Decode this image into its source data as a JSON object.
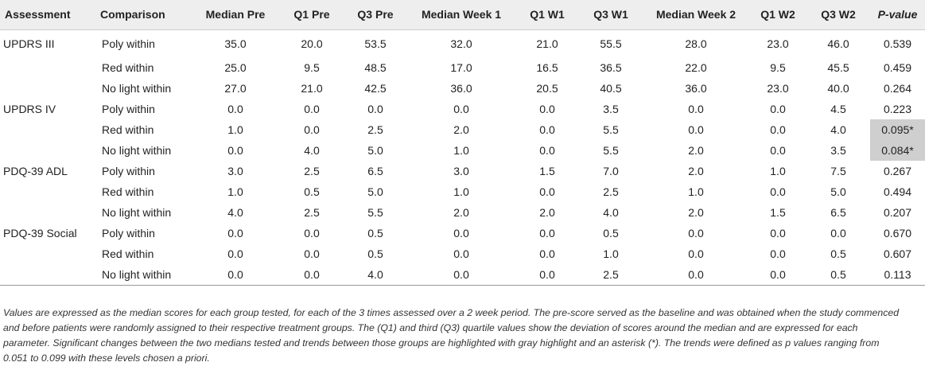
{
  "table": {
    "headers": [
      "Assessment",
      "Comparison",
      "Median Pre",
      "Q1 Pre",
      "Q3 Pre",
      "Median Week 1",
      "Q1 W1",
      "Q3 W1",
      "Median Week 2",
      "Q1 W2",
      "Q3 W2",
      "P-value"
    ],
    "rows": [
      {
        "assessment": "UPDRS III",
        "comparison": "Poly within",
        "values": [
          "35.0",
          "20.0",
          "53.5",
          "32.0",
          "21.0",
          "55.5",
          "28.0",
          "23.0",
          "46.0"
        ],
        "p": "0.539",
        "highlight": false
      },
      {
        "assessment": "",
        "comparison": "Red within",
        "values": [
          "25.0",
          "9.5",
          "48.5",
          "17.0",
          "16.5",
          "36.5",
          "22.0",
          "9.5",
          "45.5"
        ],
        "p": "0.459",
        "highlight": false
      },
      {
        "assessment": "",
        "comparison": "No light within",
        "values": [
          "27.0",
          "21.0",
          "42.5",
          "36.0",
          "20.5",
          "40.5",
          "36.0",
          "23.0",
          "40.0"
        ],
        "p": "0.264",
        "highlight": false
      },
      {
        "assessment": "UPDRS IV",
        "comparison": "Poly within",
        "values": [
          "0.0",
          "0.0",
          "0.0",
          "0.0",
          "0.0",
          "3.5",
          "0.0",
          "0.0",
          "4.5"
        ],
        "p": "0.223",
        "highlight": false
      },
      {
        "assessment": "",
        "comparison": "Red within",
        "values": [
          "1.0",
          "0.0",
          "2.5",
          "2.0",
          "0.0",
          "5.5",
          "0.0",
          "0.0",
          "4.0"
        ],
        "p": "0.095*",
        "highlight": true
      },
      {
        "assessment": "",
        "comparison": "No light within",
        "values": [
          "0.0",
          "4.0",
          "5.0",
          "1.0",
          "0.0",
          "5.5",
          "2.0",
          "0.0",
          "3.5"
        ],
        "p": "0.084*",
        "highlight": true
      },
      {
        "assessment": "PDQ-39 ADL",
        "comparison": "Poly within",
        "values": [
          "3.0",
          "2.5",
          "6.5",
          "3.0",
          "1.5",
          "7.0",
          "2.0",
          "1.0",
          "7.5"
        ],
        "p": "0.267",
        "highlight": false
      },
      {
        "assessment": "",
        "comparison": "Red within",
        "values": [
          "1.0",
          "0.5",
          "5.0",
          "1.0",
          "0.0",
          "2.5",
          "1.0",
          "0.0",
          "5.0"
        ],
        "p": "0.494",
        "highlight": false
      },
      {
        "assessment": "",
        "comparison": "No light within",
        "values": [
          "4.0",
          "2.5",
          "5.5",
          "2.0",
          "2.0",
          "4.0",
          "2.0",
          "1.5",
          "6.5"
        ],
        "p": "0.207",
        "highlight": false
      },
      {
        "assessment": "PDQ-39 Social",
        "comparison": "Poly within",
        "values": [
          "0.0",
          "0.0",
          "0.5",
          "0.0",
          "0.0",
          "0.5",
          "0.0",
          "0.0",
          "0.0"
        ],
        "p": "0.670",
        "highlight": false
      },
      {
        "assessment": "",
        "comparison": "Red within",
        "values": [
          "0.0",
          "0.0",
          "0.5",
          "0.0",
          "0.0",
          "1.0",
          "0.0",
          "0.0",
          "0.5"
        ],
        "p": "0.607",
        "highlight": false
      },
      {
        "assessment": "",
        "comparison": "No light within",
        "values": [
          "0.0",
          "0.0",
          "4.0",
          "0.0",
          "0.0",
          "2.5",
          "0.0",
          "0.0",
          "0.5"
        ],
        "p": "0.113",
        "highlight": false
      }
    ]
  },
  "footnote": "Values are expressed as the median scores for each group tested, for each of the 3 times assessed over a 2 week period. The pre-score served as the baseline and was obtained when the study commenced and before patients were randomly assigned to their respective treatment groups. The (Q1) and third (Q3) quartile values show the deviation of scores around the median and are expressed for each parameter. Significant changes between the two medians tested and trends between those groups are highlighted with gray highlight and an asterisk (*). The trends were defined as p values ranging from 0.051 to 0.099 with these levels chosen a priori.",
  "colors": {
    "header_bg": "#eeeeee",
    "highlight_bg": "#cfcfcf"
  }
}
